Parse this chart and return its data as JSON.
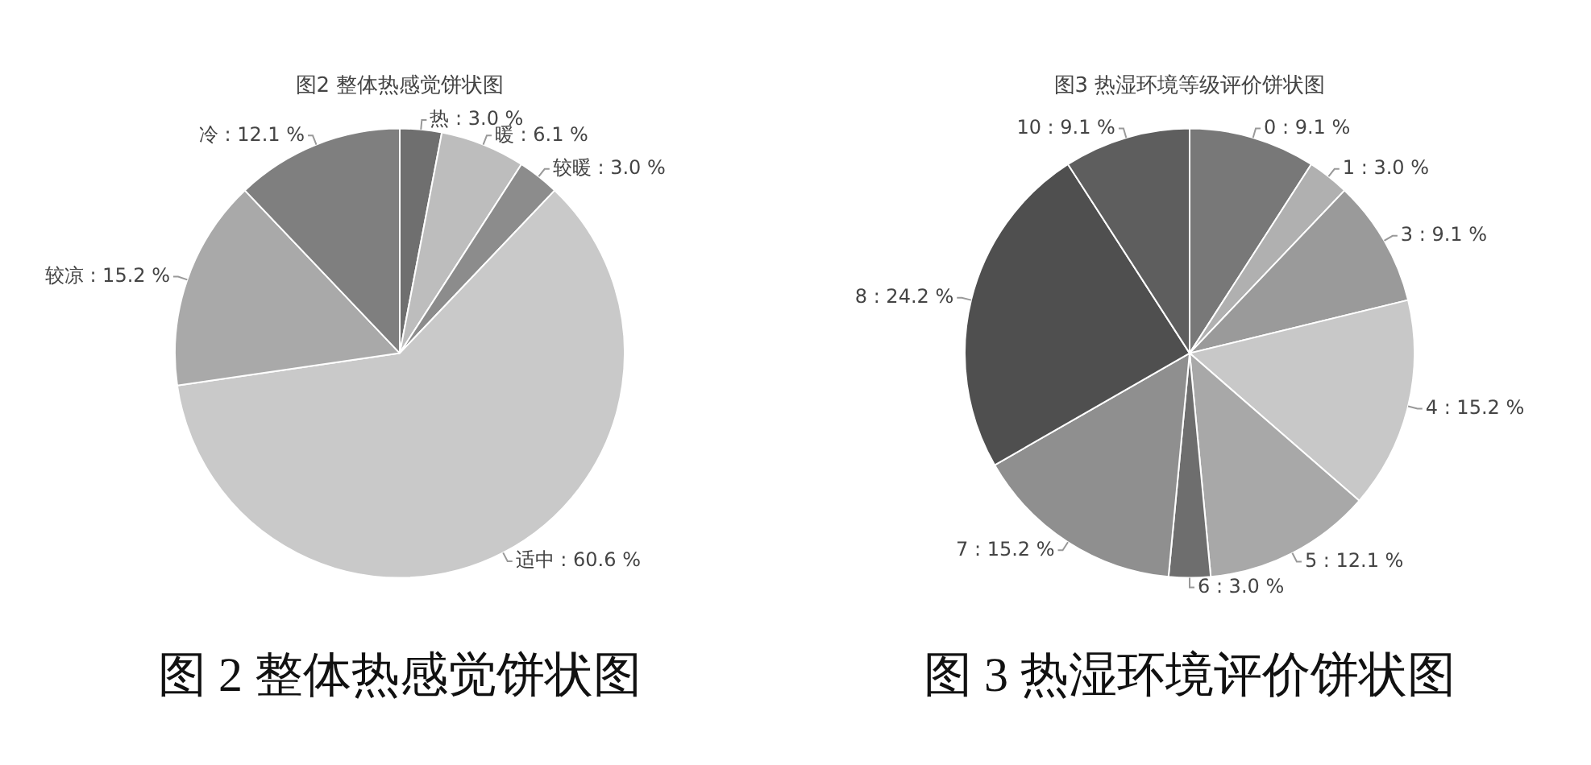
{
  "chart_data": [
    {
      "type": "pie",
      "title": "图2 整体热感觉饼状图",
      "categories": [
        "热",
        "暖",
        "较暖",
        "适中",
        "较凉",
        "冷"
      ],
      "values": [
        3.0,
        6.1,
        3.0,
        60.6,
        15.2,
        12.1
      ],
      "value_labels": [
        "3.0 %",
        "6.1 %",
        "3.0 %",
        "60.6 %",
        "15.2 %",
        "12.1 %"
      ],
      "colors": [
        "#6f6f6f",
        "#bdbdbd",
        "#8c8c8c",
        "#c9c9c9",
        "#a9a9a9",
        "#7f7f7f"
      ],
      "annotations": [
        "图 2 整体热感觉饼状图"
      ]
    },
    {
      "type": "pie",
      "title": "图3 热湿环境等级评价饼状图",
      "categories": [
        "0",
        "1",
        "3",
        "4",
        "5",
        "6",
        "7",
        "8",
        "10"
      ],
      "values": [
        9.1,
        3.0,
        9.1,
        15.2,
        12.1,
        3.0,
        15.2,
        24.2,
        9.1
      ],
      "value_labels": [
        "9.1 %",
        "3.0 %",
        "9.1 %",
        "15.2 %",
        "12.1 %",
        "3.0 %",
        "15.2 %",
        "24.2 %",
        "9.1 %"
      ],
      "colors": [
        "#787878",
        "#b0b0b0",
        "#9a9a9a",
        "#c8c8c8",
        "#a8a8a8",
        "#6e6e6e",
        "#8f8f8f",
        "#4f4f4f",
        "#5e5e5e"
      ],
      "annotations": [
        "图 3 热湿环境评价饼状图"
      ]
    }
  ]
}
